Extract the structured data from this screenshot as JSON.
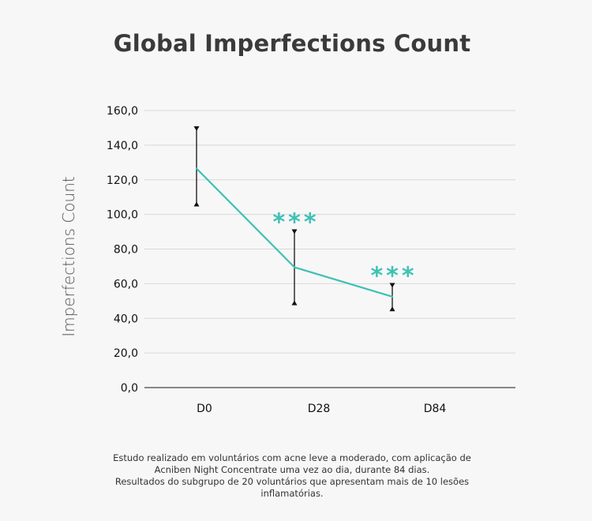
{
  "chart_data": {
    "type": "line",
    "title": "Global Imperfections Count",
    "ylabel": "Imperfections Count",
    "xlabel": "",
    "ylim": [
      0,
      160
    ],
    "yticks": [
      "0,0",
      "20,0",
      "40,0",
      "60,0",
      "80,0",
      "100,0",
      "120,0",
      "140,0",
      "160,0"
    ],
    "ytick_values": [
      0,
      20,
      40,
      60,
      80,
      100,
      120,
      140,
      160
    ],
    "categories": [
      "D0",
      "D28",
      "D84"
    ],
    "series": [
      {
        "values": [
          126.5,
          69.5,
          52.5
        ],
        "error_low": [
          105.5,
          48.5,
          45.0
        ],
        "error_high": [
          150.0,
          90.5,
          59.5
        ],
        "significance": [
          "",
          "***",
          "***"
        ]
      }
    ],
    "line_color": "#3fc1b5",
    "grid": true
  },
  "footnote": {
    "line1": "Estudo realizado em voluntários com acne leve a moderado, com aplicação de",
    "line2": "Acniben Night Concentrate uma vez ao dia, durante 84 dias.",
    "line3": "Resultados do subgrupo de 20 voluntários que apresentam mais de 10 lesões",
    "line4": "inflamatórias."
  }
}
